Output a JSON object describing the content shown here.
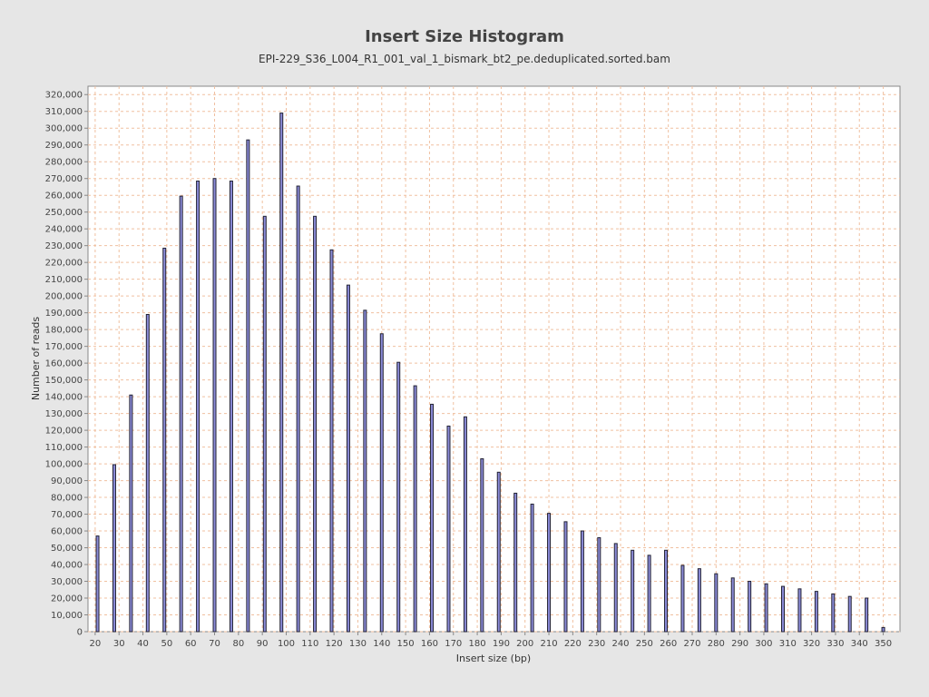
{
  "chart_data": {
    "type": "bar",
    "title": "Insert Size Histogram",
    "subtitle": "EPI-229_S36_L004_R1_001_val_1_bismark_bt2_pe.deduplicated.sorted.bam",
    "xlabel": "Insert size (bp)",
    "ylabel": "Number of reads",
    "xlim": [
      17,
      357
    ],
    "ylim": [
      0,
      325000
    ],
    "xticks": [
      20,
      30,
      40,
      50,
      60,
      70,
      80,
      90,
      100,
      110,
      120,
      130,
      140,
      150,
      160,
      170,
      180,
      190,
      200,
      210,
      220,
      230,
      240,
      250,
      260,
      270,
      280,
      290,
      300,
      310,
      320,
      330,
      340,
      350
    ],
    "yticks": [
      0,
      10000,
      20000,
      30000,
      40000,
      50000,
      60000,
      70000,
      80000,
      90000,
      100000,
      110000,
      120000,
      130000,
      140000,
      150000,
      160000,
      170000,
      180000,
      190000,
      200000,
      210000,
      220000,
      230000,
      240000,
      250000,
      260000,
      270000,
      280000,
      290000,
      300000,
      310000,
      320000
    ],
    "ytick_labels": [
      "0",
      "10,000",
      "20,000",
      "30,000",
      "40,000",
      "50,000",
      "60,000",
      "70,000",
      "80,000",
      "90,000",
      "100,000",
      "110,000",
      "120,000",
      "130,000",
      "140,000",
      "150,000",
      "160,000",
      "170,000",
      "180,000",
      "190,000",
      "200,000",
      "210,000",
      "220,000",
      "230,000",
      "240,000",
      "250,000",
      "260,000",
      "270,000",
      "280,000",
      "290,000",
      "300,000",
      "310,000",
      "320,000"
    ],
    "grid": true,
    "bar_color": "#8c8cd9",
    "x": [
      21,
      28,
      35,
      42,
      49,
      56,
      63,
      70,
      77,
      84,
      91,
      98,
      105,
      112,
      119,
      126,
      133,
      140,
      147,
      154,
      161,
      168,
      175,
      182,
      189,
      196,
      203,
      210,
      217,
      224,
      231,
      238,
      245,
      252,
      259,
      266,
      273,
      280,
      287,
      294,
      301,
      308,
      315,
      322,
      329,
      336,
      343,
      350
    ],
    "values": [
      57000,
      99500,
      141000,
      189000,
      228500,
      259500,
      268500,
      270000,
      268500,
      293000,
      247500,
      309000,
      265500,
      247500,
      227500,
      206500,
      191500,
      177500,
      160500,
      146500,
      135500,
      122500,
      128000,
      103000,
      95000,
      82500,
      76000,
      70500,
      65500,
      60000,
      56000,
      52500,
      48500,
      45500,
      48500,
      39500,
      37500,
      34500,
      32000,
      30000,
      28500,
      27000,
      25500,
      24000,
      22500,
      21000,
      20000,
      2500
    ]
  }
}
